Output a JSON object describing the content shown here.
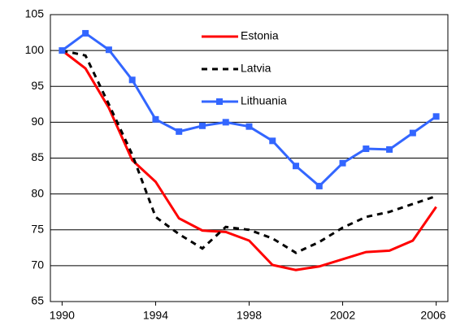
{
  "chart_data": {
    "type": "line",
    "x": [
      1990,
      1991,
      1992,
      1993,
      1994,
      1995,
      1996,
      1997,
      1998,
      1999,
      2000,
      2001,
      2002,
      2003,
      2004,
      2005,
      2006
    ],
    "series": [
      {
        "name": "Estonia",
        "color": "#ff0000",
        "dash": false,
        "marker": false,
        "values": [
          100,
          97.5,
          92,
          84.7,
          81.7,
          76.6,
          74.9,
          74.7,
          73.5,
          70.1,
          69.4,
          69.9,
          70.9,
          71.9,
          72.1,
          73.5,
          78.2
        ]
      },
      {
        "name": "Latvia",
        "color": "#000000",
        "dash": true,
        "marker": false,
        "values": [
          100,
          99.3,
          92.5,
          85.5,
          76.8,
          74.4,
          72.4,
          75.4,
          75.0,
          73.8,
          71.8,
          73.3,
          75.3,
          76.8,
          77.5,
          78.6,
          79.7
        ]
      },
      {
        "name": "Lithuania",
        "color": "#3366ff",
        "dash": false,
        "marker": true,
        "values": [
          100,
          102.4,
          100.1,
          95.9,
          90.4,
          88.7,
          89.5,
          90.0,
          89.4,
          87.4,
          83.9,
          81.1,
          84.3,
          86.3,
          86.2,
          88.5,
          90.8
        ]
      }
    ],
    "xlim": [
      1989.5,
      2006.5
    ],
    "xticks": [
      1990,
      1994,
      1998,
      2002,
      2006
    ],
    "ylim": [
      65,
      105
    ],
    "yticks": [
      65,
      70,
      75,
      80,
      85,
      90,
      95,
      100,
      105
    ],
    "grid": true,
    "legend": "top"
  }
}
